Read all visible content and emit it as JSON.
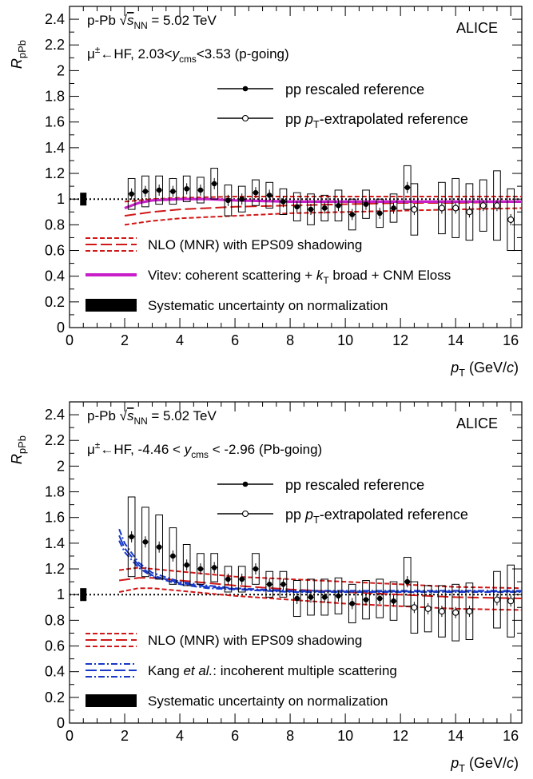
{
  "chart_data": [
    {
      "type": "scatter",
      "title": "",
      "collision_line": "p-Pb √sNN = 5.02 TeV",
      "experiment": "ALICE",
      "selection": "μ±←HF, 2.03<ycms<3.53 (p-going)",
      "xlabel": "pT (GeV/c)",
      "ylabel": "RpPb",
      "xlim": [
        0,
        16.4
      ],
      "ylim": [
        0,
        2.5
      ],
      "x_ticks": [
        0,
        2,
        4,
        6,
        8,
        10,
        12,
        14,
        16
      ],
      "y_ticks": [
        0,
        0.2,
        0.4,
        0.6,
        0.8,
        1,
        1.2,
        1.4,
        1.6,
        1.8,
        2,
        2.2,
        2.4
      ],
      "reference_line": 1,
      "normalization_box": {
        "x": 0.5,
        "low": 0.95,
        "high": 1.05
      },
      "legend_top": [
        {
          "label": "pp rescaled reference",
          "marker": "filled"
        },
        {
          "label": "pp pT-extrapolated reference",
          "marker": "open"
        }
      ],
      "legend_bottom": [
        {
          "label": "NLO (MNR) with EPS09 shadowing",
          "style": "red-dashed"
        },
        {
          "label": "Vitev: coherent scattering + kT broad + CNM Eloss",
          "style": "magenta"
        },
        {
          "label": "Systematic uncertainty on normalization",
          "style": "black-box"
        }
      ],
      "series": [
        {
          "name": "pp rescaled reference",
          "marker": "filled",
          "points": [
            {
              "x": 2.25,
              "y": 1.04,
              "syst": 0.12,
              "w": 0.25
            },
            {
              "x": 2.75,
              "y": 1.06,
              "syst": 0.12,
              "w": 0.25
            },
            {
              "x": 3.25,
              "y": 1.07,
              "syst": 0.11,
              "w": 0.25
            },
            {
              "x": 3.75,
              "y": 1.06,
              "syst": 0.1,
              "w": 0.25
            },
            {
              "x": 4.25,
              "y": 1.08,
              "syst": 0.1,
              "w": 0.25
            },
            {
              "x": 4.75,
              "y": 1.07,
              "syst": 0.1,
              "w": 0.25
            },
            {
              "x": 5.25,
              "y": 1.12,
              "syst": 0.12,
              "w": 0.25
            },
            {
              "x": 5.75,
              "y": 0.99,
              "syst": 0.12,
              "w": 0.25
            },
            {
              "x": 6.25,
              "y": 1.0,
              "syst": 0.1,
              "w": 0.25
            },
            {
              "x": 6.75,
              "y": 1.05,
              "syst": 0.1,
              "w": 0.25
            },
            {
              "x": 7.25,
              "y": 1.03,
              "syst": 0.1,
              "w": 0.25
            },
            {
              "x": 7.75,
              "y": 0.98,
              "syst": 0.1,
              "w": 0.25
            },
            {
              "x": 8.25,
              "y": 0.94,
              "syst": 0.11,
              "w": 0.25
            },
            {
              "x": 8.75,
              "y": 0.92,
              "syst": 0.12,
              "w": 0.25
            },
            {
              "x": 9.25,
              "y": 0.93,
              "syst": 0.1,
              "w": 0.25
            },
            {
              "x": 9.75,
              "y": 0.95,
              "syst": 0.12,
              "w": 0.25
            },
            {
              "x": 10.25,
              "y": 0.88,
              "syst": 0.12,
              "w": 0.25
            },
            {
              "x": 10.75,
              "y": 0.96,
              "syst": 0.11,
              "w": 0.25
            },
            {
              "x": 11.25,
              "y": 0.89,
              "syst": 0.11,
              "w": 0.25
            },
            {
              "x": 11.75,
              "y": 0.93,
              "syst": 0.11,
              "w": 0.25
            },
            {
              "x": 12.25,
              "y": 1.09,
              "syst": 0.17,
              "w": 0.25
            }
          ]
        },
        {
          "name": "pp pT-extrapolated reference",
          "marker": "open",
          "points": [
            {
              "x": 12.5,
              "y": 0.92,
              "syst": 0.2,
              "w": 0.25
            },
            {
              "x": 13.5,
              "y": 0.93,
              "syst": 0.2,
              "w": 0.25
            },
            {
              "x": 14.0,
              "y": 0.93,
              "syst": 0.23,
              "w": 0.25
            },
            {
              "x": 14.5,
              "y": 0.9,
              "syst": 0.22,
              "w": 0.25
            },
            {
              "x": 15.0,
              "y": 0.95,
              "syst": 0.2,
              "w": 0.25
            },
            {
              "x": 15.5,
              "y": 0.95,
              "syst": 0.27,
              "w": 0.25
            },
            {
              "x": 16.0,
              "y": 0.84,
              "syst": 0.24,
              "w": 0.25
            }
          ]
        }
      ],
      "curves": [
        {
          "name": "NLO (MNR) with EPS09 shadowing",
          "color": "#d01818",
          "dash": "6,3",
          "x": [
            2,
            3,
            4,
            6,
            8,
            10,
            12,
            14,
            16.4
          ],
          "y": [
            0.8,
            0.83,
            0.85,
            0.87,
            0.89,
            0.9,
            0.91,
            0.92,
            0.93
          ]
        },
        {
          "name": "NLO (MNR) with EPS09 shadowing",
          "color": "#d01818",
          "dash": "6,3",
          "x": [
            2,
            3,
            4,
            6,
            8,
            10,
            12,
            14,
            16.4
          ],
          "y": [
            0.98,
            1.0,
            1.01,
            1.02,
            1.02,
            1.02,
            1.02,
            1.02,
            1.02
          ]
        },
        {
          "name": "NLO (MNR) with EPS09 shadowing",
          "color": "#d01818",
          "dash": "14,5",
          "x": [
            2,
            3,
            4,
            6,
            8,
            10,
            12,
            14,
            16.4
          ],
          "y": [
            0.87,
            0.9,
            0.92,
            0.94,
            0.95,
            0.96,
            0.97,
            0.97,
            0.98
          ]
        },
        {
          "name": "Vitev: coherent scattering + kT broad + CNM Eloss",
          "color": "#c81ec8",
          "width": 3.2,
          "dash": "",
          "x": [
            2,
            2.5,
            3,
            4,
            5,
            6,
            8,
            10,
            12,
            14,
            16.4
          ],
          "y": [
            0.93,
            0.97,
            0.99,
            1.0,
            1.0,
            0.99,
            0.98,
            0.98,
            0.98,
            0.98,
            0.98
          ]
        }
      ]
    },
    {
      "type": "scatter",
      "title": "",
      "collision_line": "p-Pb √sNN = 5.02 TeV",
      "experiment": "ALICE",
      "selection": "μ±←HF, -4.46 < ycms < -2.96 (Pb-going)",
      "xlabel": "pT (GeV/c)",
      "ylabel": "RpPb",
      "xlim": [
        0,
        16.4
      ],
      "ylim": [
        0,
        2.5
      ],
      "x_ticks": [
        0,
        2,
        4,
        6,
        8,
        10,
        12,
        14,
        16
      ],
      "y_ticks": [
        0,
        0.2,
        0.4,
        0.6,
        0.8,
        1,
        1.2,
        1.4,
        1.6,
        1.8,
        2,
        2.2,
        2.4
      ],
      "reference_line": 1,
      "normalization_box": {
        "x": 0.5,
        "low": 0.95,
        "high": 1.05
      },
      "legend_top": [
        {
          "label": "pp rescaled reference",
          "marker": "filled"
        },
        {
          "label": "pp pT-extrapolated reference",
          "marker": "open"
        }
      ],
      "legend_bottom": [
        {
          "label": "NLO (MNR) with EPS09 shadowing",
          "style": "red-dashed"
        },
        {
          "label": "Kang et al.: incoherent multiple scattering",
          "style": "blue-dashdot"
        },
        {
          "label": "Systematic uncertainty on normalization",
          "style": "black-box"
        }
      ],
      "series": [
        {
          "name": "pp rescaled reference",
          "marker": "filled",
          "points": [
            {
              "x": 2.25,
              "y": 1.45,
              "syst": 0.31,
              "w": 0.25
            },
            {
              "x": 2.75,
              "y": 1.41,
              "syst": 0.27,
              "w": 0.25
            },
            {
              "x": 3.25,
              "y": 1.37,
              "syst": 0.25,
              "w": 0.25
            },
            {
              "x": 3.75,
              "y": 1.3,
              "syst": 0.22,
              "w": 0.25
            },
            {
              "x": 4.25,
              "y": 1.23,
              "syst": 0.16,
              "w": 0.25
            },
            {
              "x": 4.75,
              "y": 1.2,
              "syst": 0.12,
              "w": 0.25
            },
            {
              "x": 5.25,
              "y": 1.21,
              "syst": 0.11,
              "w": 0.25
            },
            {
              "x": 5.75,
              "y": 1.12,
              "syst": 0.1,
              "w": 0.25
            },
            {
              "x": 6.25,
              "y": 1.12,
              "syst": 0.1,
              "w": 0.25
            },
            {
              "x": 6.75,
              "y": 1.2,
              "syst": 0.12,
              "w": 0.25
            },
            {
              "x": 7.25,
              "y": 1.08,
              "syst": 0.1,
              "w": 0.25
            },
            {
              "x": 7.75,
              "y": 1.08,
              "syst": 0.1,
              "w": 0.25
            },
            {
              "x": 8.25,
              "y": 0.97,
              "syst": 0.14,
              "w": 0.25
            },
            {
              "x": 8.75,
              "y": 0.98,
              "syst": 0.14,
              "w": 0.25
            },
            {
              "x": 9.25,
              "y": 0.98,
              "syst": 0.14,
              "w": 0.25
            },
            {
              "x": 9.75,
              "y": 0.99,
              "syst": 0.14,
              "w": 0.25
            },
            {
              "x": 10.25,
              "y": 0.93,
              "syst": 0.15,
              "w": 0.25
            },
            {
              "x": 10.75,
              "y": 0.96,
              "syst": 0.15,
              "w": 0.25
            },
            {
              "x": 11.25,
              "y": 0.97,
              "syst": 0.15,
              "w": 0.25
            },
            {
              "x": 11.75,
              "y": 0.95,
              "syst": 0.15,
              "w": 0.25
            },
            {
              "x": 12.25,
              "y": 1.1,
              "syst": 0.19,
              "w": 0.25
            }
          ]
        },
        {
          "name": "pp pT-extrapolated reference",
          "marker": "open",
          "points": [
            {
              "x": 12.5,
              "y": 0.9,
              "syst": 0.2,
              "w": 0.25
            },
            {
              "x": 13.0,
              "y": 0.89,
              "syst": 0.18,
              "w": 0.25
            },
            {
              "x": 13.5,
              "y": 0.87,
              "syst": 0.2,
              "w": 0.25
            },
            {
              "x": 14.0,
              "y": 0.86,
              "syst": 0.22,
              "w": 0.25
            },
            {
              "x": 14.5,
              "y": 0.87,
              "syst": 0.22,
              "w": 0.25
            },
            {
              "x": 15.5,
              "y": 0.96,
              "syst": 0.22,
              "w": 0.25
            },
            {
              "x": 16.0,
              "y": 0.95,
              "syst": 0.28,
              "w": 0.25
            }
          ]
        }
      ],
      "curves": [
        {
          "name": "NLO (MNR) with EPS09 shadowing",
          "color": "#d01818",
          "dash": "6,3",
          "x": [
            1.8,
            2.5,
            3,
            4,
            5,
            6,
            8,
            10,
            12,
            14,
            16.4
          ],
          "y": [
            1.19,
            1.21,
            1.2,
            1.18,
            1.16,
            1.14,
            1.12,
            1.1,
            1.08,
            1.06,
            1.05
          ]
        },
        {
          "name": "NLO (MNR) with EPS09 shadowing",
          "color": "#d01818",
          "dash": "6,3",
          "x": [
            1.8,
            2.5,
            3,
            4,
            5,
            6,
            8,
            10,
            12,
            14,
            16.4
          ],
          "y": [
            1.02,
            1.05,
            1.05,
            1.03,
            1.01,
            0.99,
            0.96,
            0.93,
            0.91,
            0.89,
            0.88
          ]
        },
        {
          "name": "NLO (MNR) with EPS09 shadowing",
          "color": "#d01818",
          "dash": "14,5",
          "x": [
            1.8,
            2.5,
            3,
            4,
            5,
            6,
            8,
            10,
            12,
            14,
            16.4
          ],
          "y": [
            1.11,
            1.13,
            1.13,
            1.11,
            1.09,
            1.07,
            1.04,
            1.02,
            1.0,
            0.98,
            0.97
          ]
        },
        {
          "name": "Kang et al.: incoherent multiple scattering",
          "color": "#1838c8",
          "dash": "8,3,2,3",
          "x": [
            1.8,
            2.0,
            2.5,
            3,
            4,
            5,
            6,
            8,
            10,
            12,
            14,
            16.4
          ],
          "y": [
            1.51,
            1.4,
            1.25,
            1.17,
            1.1,
            1.07,
            1.05,
            1.03,
            1.03,
            1.03,
            1.03,
            1.03
          ]
        },
        {
          "name": "Kang et al.: incoherent multiple scattering",
          "color": "#1838c8",
          "dash": "8,3,2,3",
          "x": [
            1.8,
            2.0,
            2.5,
            3,
            4,
            5,
            6,
            8,
            10,
            12,
            14,
            16.4
          ],
          "y": [
            1.42,
            1.33,
            1.21,
            1.14,
            1.08,
            1.05,
            1.04,
            1.02,
            1.02,
            1.02,
            1.02,
            1.02
          ]
        },
        {
          "name": "Kang et al.: incoherent multiple scattering",
          "color": "#1838c8",
          "dash": "14,4",
          "x": [
            1.8,
            2.0,
            2.5,
            3,
            4,
            5,
            6,
            8,
            10,
            12,
            14,
            16.4
          ],
          "y": [
            1.46,
            1.36,
            1.23,
            1.15,
            1.09,
            1.06,
            1.045,
            1.025,
            1.025,
            1.025,
            1.025,
            1.025
          ]
        }
      ]
    }
  ]
}
